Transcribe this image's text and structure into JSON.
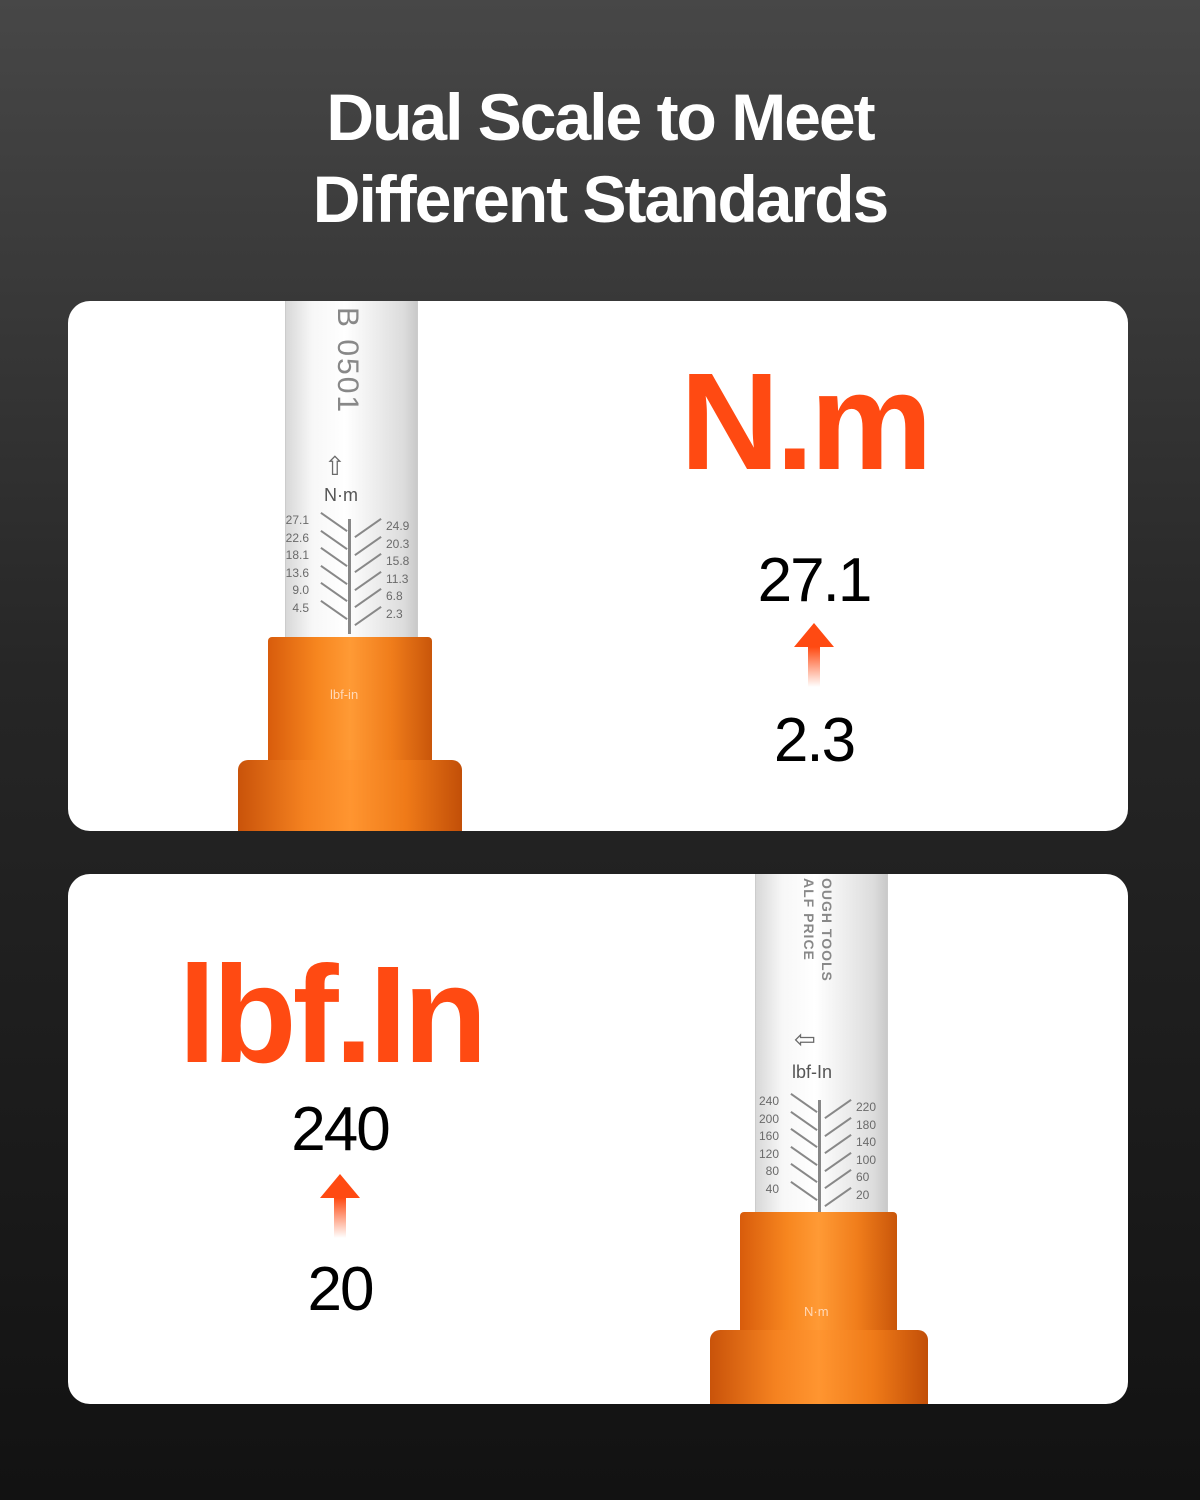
{
  "title": {
    "line1": "Dual Scale to Meet",
    "line2": "Different Standards"
  },
  "colors": {
    "accent": "#ff4a12",
    "card": "#ffffff",
    "tool_orange": "#f7861f"
  },
  "nm_panel": {
    "unit_heading": "N.m",
    "max": "27.1",
    "min": "2.3",
    "arrow_icon": "arrow-up",
    "tube_text": "B 0501",
    "tube_unit": "N·m",
    "collar_unit": "lbf-in",
    "scale_left": [
      "27.1",
      "22.6",
      "18.1",
      "13.6",
      "9.0",
      "4.5"
    ],
    "scale_right": [
      "24.9",
      "20.3",
      "15.8",
      "11.3",
      "6.8",
      "2.3"
    ]
  },
  "lbf_panel": {
    "unit_heading": "lbf.In",
    "max": "240",
    "min": "20",
    "arrow_icon": "arrow-up",
    "tube_text": "OUGH TOOLS ALF PRICE",
    "tube_unit": "lbf-In",
    "collar_unit": "N·m",
    "scale_left": [
      "240",
      "200",
      "160",
      "120",
      "80",
      "40"
    ],
    "scale_right": [
      "220",
      "180",
      "140",
      "100",
      "60",
      "20"
    ]
  }
}
